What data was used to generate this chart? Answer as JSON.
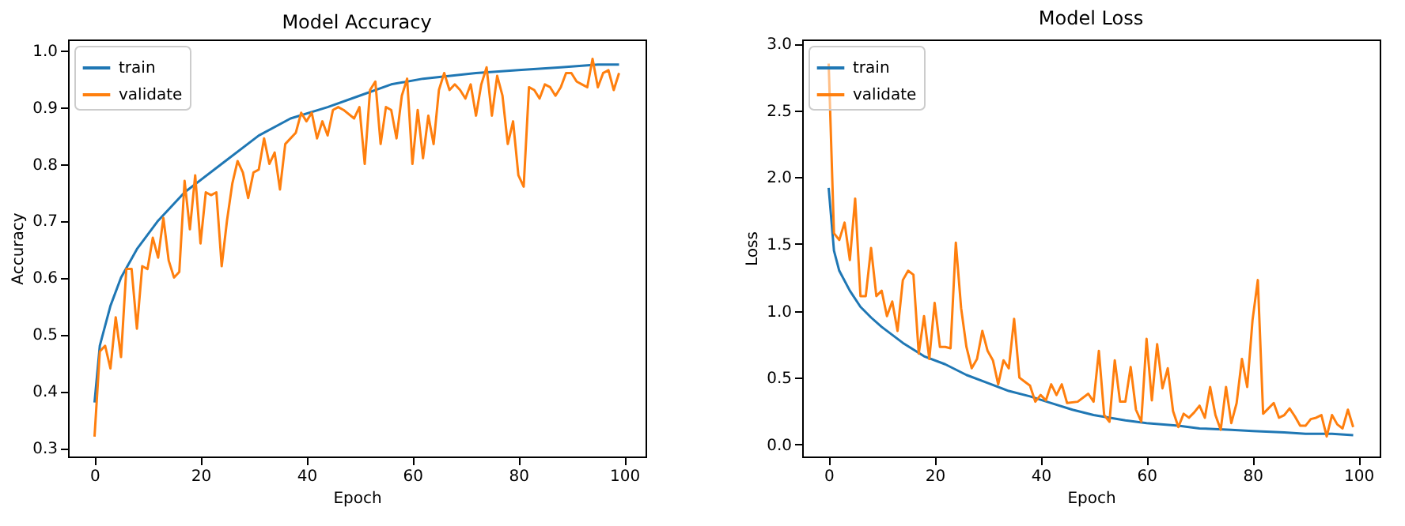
{
  "chart_data": [
    {
      "type": "line",
      "title": "Model Accuracy",
      "xlabel": "Epoch",
      "ylabel": "Accuracy",
      "xlim": [
        -5,
        104
      ],
      "xticks": [
        0,
        20,
        40,
        60,
        80,
        100
      ],
      "ylim": [
        0.285,
        1.019
      ],
      "yticks": [
        0.3,
        0.4,
        0.5,
        0.6,
        0.7,
        0.8,
        0.9,
        {
          "value": 1,
          "label": "1.0"
        }
      ],
      "grid": false,
      "legend": "top left",
      "line_style": "solid",
      "marker": "none",
      "series": [
        {
          "name": "train",
          "color": "#1f77b4",
          "x": [
            0,
            1,
            3,
            5,
            8,
            12,
            17,
            24,
            31,
            37,
            44,
            50,
            56,
            62,
            72,
            80,
            88,
            95,
            99
          ],
          "values": [
            0.38,
            0.48,
            0.55,
            0.6,
            0.65,
            0.7,
            0.75,
            0.8,
            0.85,
            0.88,
            0.9,
            0.92,
            0.94,
            0.95,
            0.96,
            0.965,
            0.97,
            0.975,
            0.975
          ]
        },
        {
          "name": "validate",
          "color": "#ff7f0e",
          "x": [
            0,
            1,
            2,
            3,
            4,
            5,
            6,
            7,
            8,
            9,
            10,
            11,
            12,
            13,
            14,
            15,
            16,
            17,
            18,
            19,
            20,
            21,
            22,
            23,
            24,
            25,
            26,
            27,
            28,
            29,
            30,
            31,
            32,
            33,
            34,
            35,
            36,
            38,
            39,
            40,
            41,
            42,
            43,
            44,
            45,
            46,
            47,
            49,
            50,
            51,
            52,
            53,
            54,
            55,
            56,
            57,
            58,
            59,
            60,
            61,
            62,
            63,
            64,
            65,
            66,
            67,
            68,
            69,
            70,
            71,
            72,
            73,
            74,
            75,
            76,
            77,
            78,
            79,
            80,
            81,
            82,
            83,
            84,
            85,
            86,
            87,
            88,
            89,
            90,
            91,
            92,
            93,
            94,
            95,
            96,
            97,
            98,
            99
          ],
          "values": [
            0.32,
            0.47,
            0.48,
            0.44,
            0.53,
            0.46,
            0.615,
            0.615,
            0.51,
            0.62,
            0.615,
            0.67,
            0.635,
            0.705,
            0.63,
            0.6,
            0.61,
            0.77,
            0.685,
            0.78,
            0.66,
            0.75,
            0.745,
            0.75,
            0.62,
            0.7,
            0.765,
            0.805,
            0.785,
            0.74,
            0.785,
            0.79,
            0.845,
            0.8,
            0.82,
            0.755,
            0.835,
            0.855,
            0.89,
            0.875,
            0.89,
            0.845,
            0.875,
            0.85,
            0.895,
            0.9,
            0.895,
            0.88,
            0.9,
            0.8,
            0.93,
            0.945,
            0.835,
            0.9,
            0.895,
            0.845,
            0.92,
            0.95,
            0.8,
            0.895,
            0.81,
            0.885,
            0.835,
            0.93,
            0.96,
            0.93,
            0.94,
            0.93,
            0.915,
            0.94,
            0.885,
            0.94,
            0.97,
            0.885,
            0.955,
            0.92,
            0.835,
            0.875,
            0.78,
            0.76,
            0.935,
            0.93,
            0.915,
            0.94,
            0.935,
            0.92,
            0.935,
            0.96,
            0.96,
            0.945,
            0.94,
            0.935,
            0.985,
            0.935,
            0.96,
            0.965,
            0.93,
            0.96
          ]
        }
      ]
    },
    {
      "type": "line",
      "title": "Model Loss",
      "xlabel": "Epoch",
      "ylabel": "Loss",
      "xlim": [
        -5,
        104
      ],
      "xticks": [
        0,
        20,
        40,
        60,
        80,
        100
      ],
      "ylim": [
        -0.09,
        3.03
      ],
      "yticks": [
        {
          "value": 0,
          "label": "0.0"
        },
        0.5,
        {
          "value": 1,
          "label": "1.0"
        },
        1.5,
        {
          "value": 2,
          "label": "2.0"
        },
        2.5,
        {
          "value": 3,
          "label": "3.0"
        }
      ],
      "grid": false,
      "legend": "top left",
      "line_style": "solid",
      "marker": "none",
      "series": [
        {
          "name": "train",
          "color": "#1f77b4",
          "x": [
            0,
            1,
            2,
            4,
            6,
            8,
            10,
            14,
            18,
            22,
            26,
            30,
            34,
            38,
            42,
            46,
            50,
            56,
            60,
            66,
            70,
            76,
            80,
            86,
            90,
            95,
            99
          ],
          "values": [
            1.92,
            1.45,
            1.3,
            1.15,
            1.03,
            0.95,
            0.88,
            0.76,
            0.66,
            0.6,
            0.52,
            0.46,
            0.4,
            0.36,
            0.31,
            0.26,
            0.22,
            0.18,
            0.16,
            0.14,
            0.12,
            0.11,
            0.1,
            0.09,
            0.08,
            0.08,
            0.07
          ]
        },
        {
          "name": "validate",
          "color": "#ff7f0e",
          "x": [
            0,
            1,
            2,
            3,
            4,
            5,
            6,
            7,
            8,
            9,
            10,
            11,
            12,
            13,
            14,
            15,
            16,
            17,
            18,
            19,
            20,
            21,
            22,
            23,
            24,
            25,
            26,
            27,
            28,
            29,
            30,
            31,
            32,
            33,
            34,
            35,
            36,
            37,
            38,
            39,
            40,
            41,
            42,
            43,
            44,
            45,
            47,
            49,
            50,
            51,
            52,
            53,
            54,
            55,
            56,
            57,
            58,
            59,
            60,
            61,
            62,
            63,
            64,
            65,
            66,
            67,
            68,
            69,
            70,
            71,
            72,
            73,
            74,
            75,
            76,
            77,
            78,
            79,
            80,
            81,
            82,
            83,
            84,
            85,
            86,
            87,
            88,
            89,
            90,
            91,
            92,
            93,
            94,
            95,
            96,
            97,
            98,
            99
          ],
          "values": [
            2.85,
            1.58,
            1.53,
            1.66,
            1.38,
            1.84,
            1.11,
            1.11,
            1.47,
            1.11,
            1.15,
            0.96,
            1.07,
            0.85,
            1.23,
            1.3,
            1.27,
            0.68,
            0.96,
            0.64,
            1.06,
            0.73,
            0.73,
            0.72,
            1.51,
            1.02,
            0.73,
            0.57,
            0.64,
            0.85,
            0.7,
            0.63,
            0.45,
            0.63,
            0.57,
            0.94,
            0.5,
            0.47,
            0.44,
            0.32,
            0.37,
            0.33,
            0.45,
            0.37,
            0.45,
            0.31,
            0.32,
            0.38,
            0.32,
            0.7,
            0.22,
            0.17,
            0.63,
            0.32,
            0.32,
            0.58,
            0.26,
            0.17,
            0.79,
            0.33,
            0.75,
            0.42,
            0.57,
            0.25,
            0.13,
            0.23,
            0.2,
            0.24,
            0.29,
            0.2,
            0.43,
            0.22,
            0.11,
            0.43,
            0.16,
            0.31,
            0.64,
            0.43,
            0.93,
            1.23,
            0.23,
            0.27,
            0.31,
            0.2,
            0.22,
            0.27,
            0.21,
            0.14,
            0.14,
            0.19,
            0.2,
            0.22,
            0.06,
            0.22,
            0.15,
            0.12,
            0.26,
            0.13
          ]
        }
      ]
    }
  ]
}
